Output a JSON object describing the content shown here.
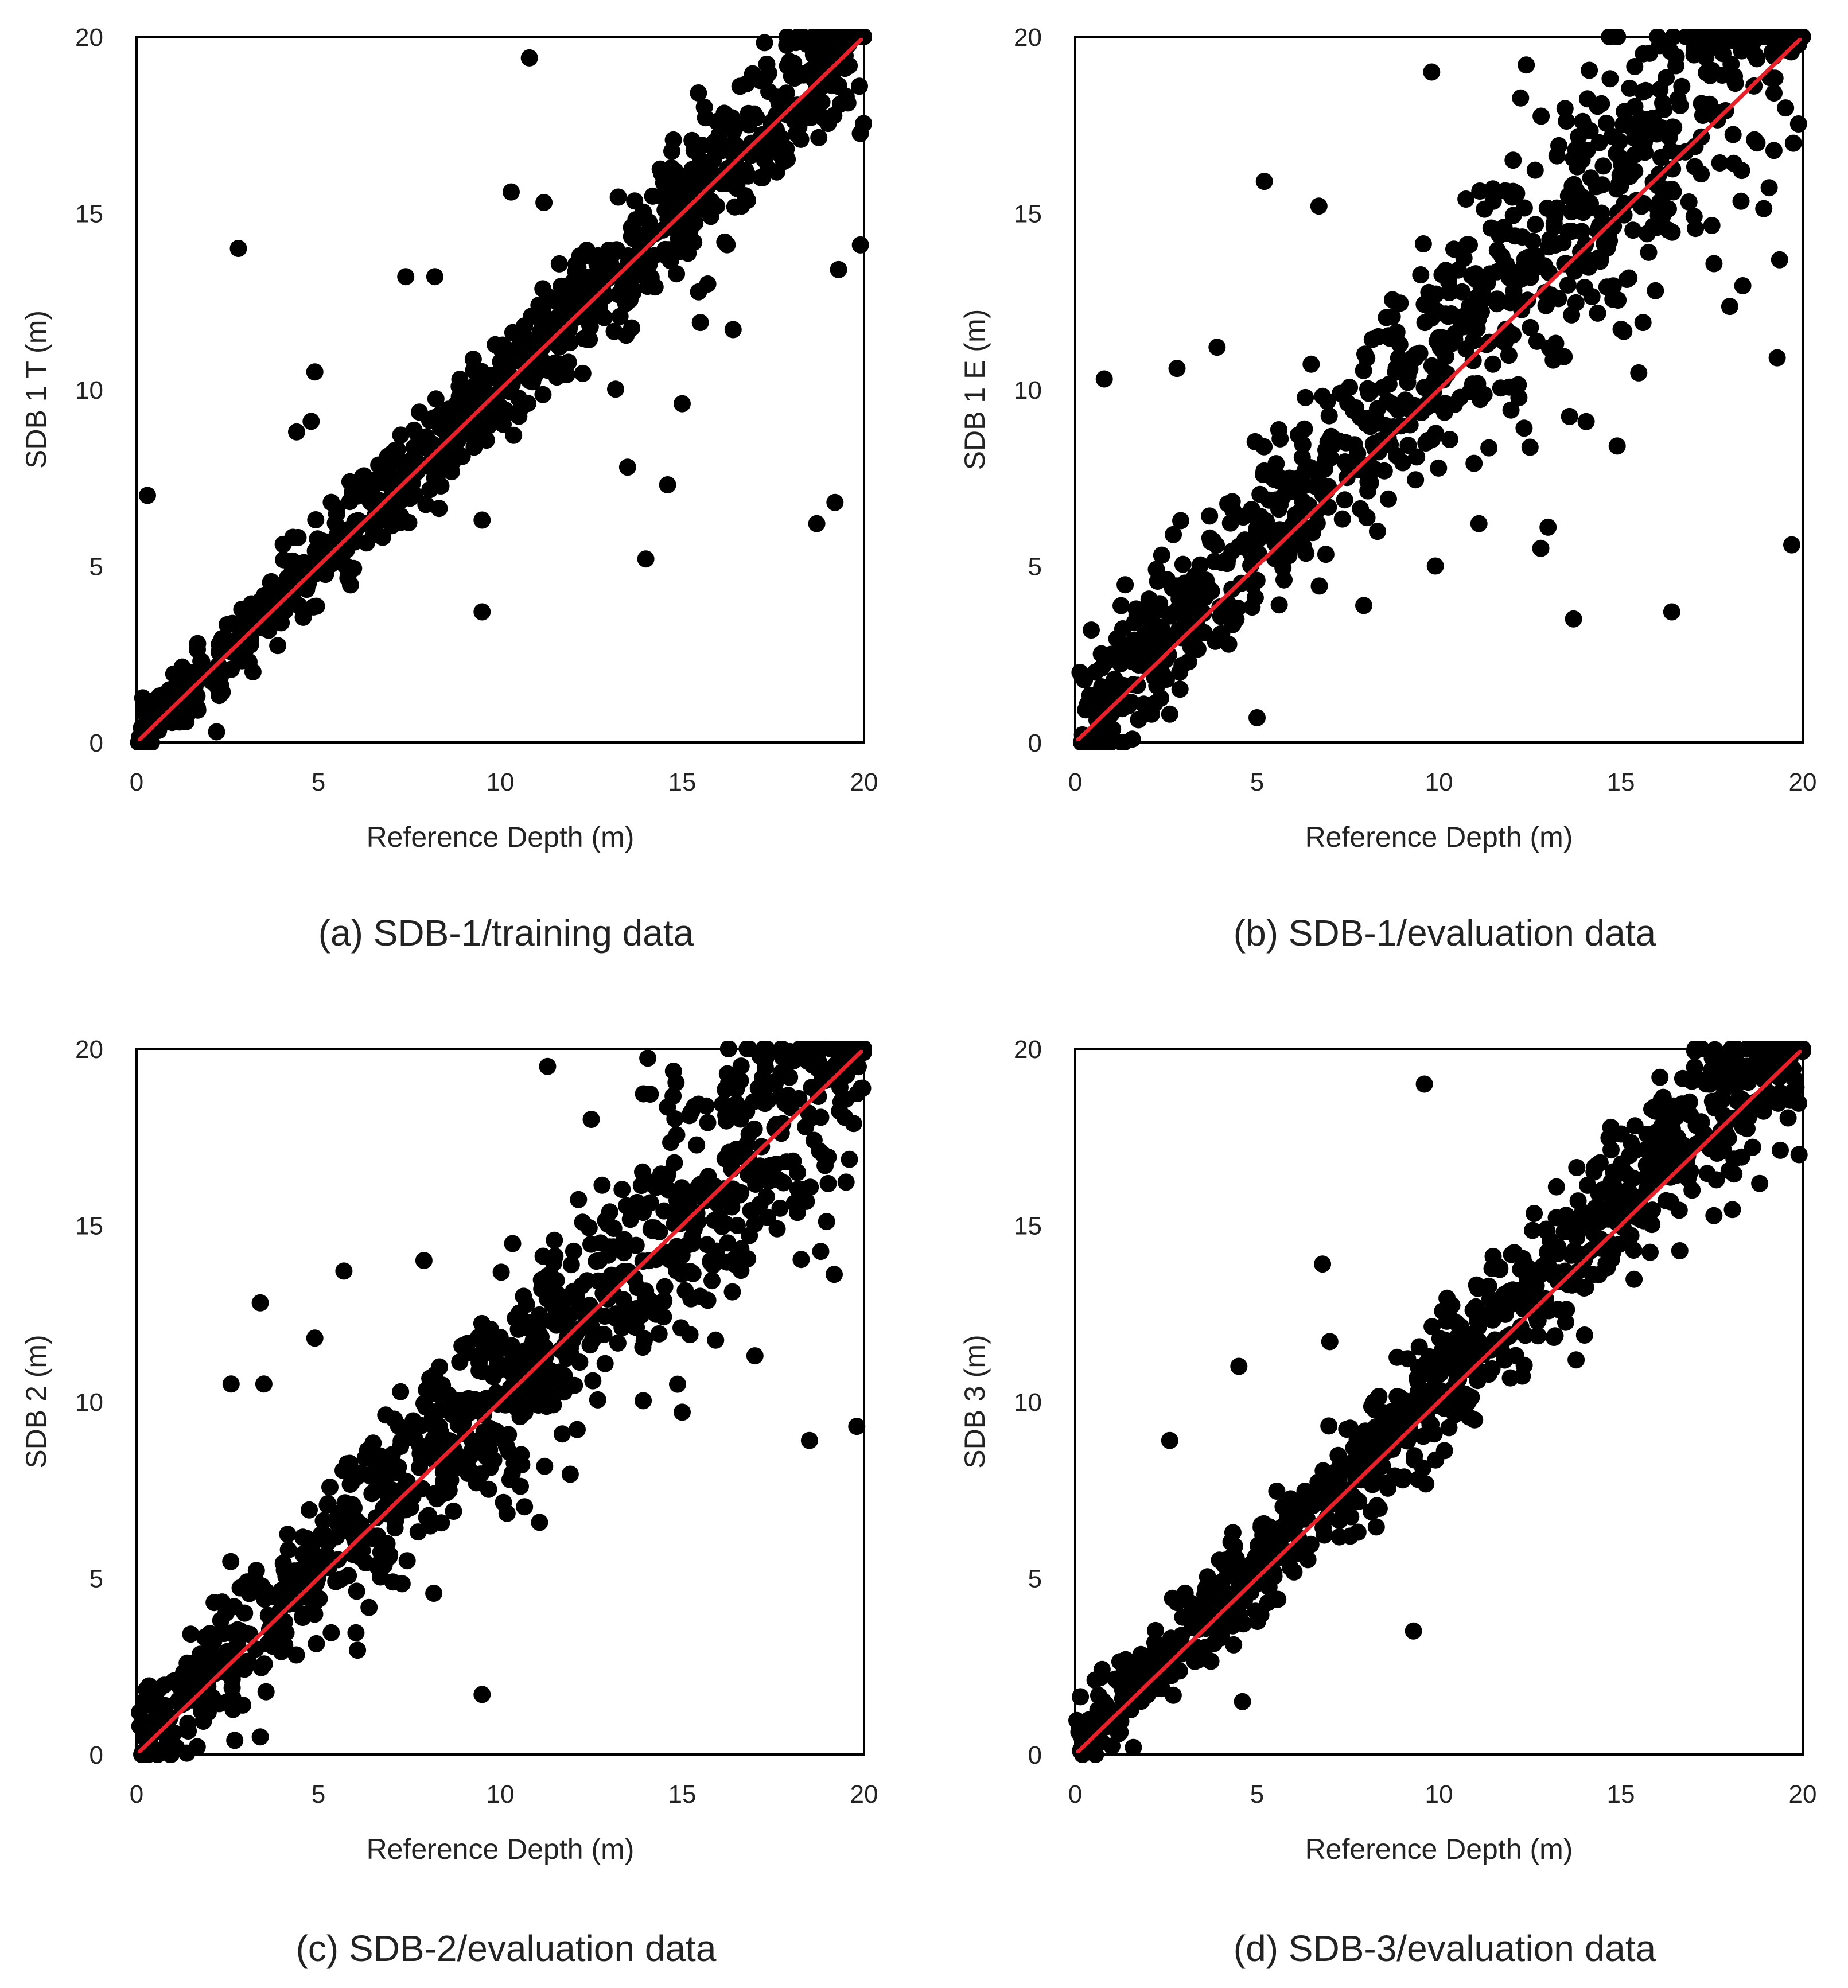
{
  "figure": {
    "type": "scatter-grid"
  },
  "chart_data": [
    {
      "type": "scatter",
      "id": "a",
      "caption": "(a) SDB-1/training data",
      "xlabel": "Reference Depth (m)",
      "ylabel": "SDB 1 T (m)",
      "xlim": [
        0,
        20
      ],
      "ylim": [
        0,
        20
      ],
      "xticks": [
        "0",
        "5",
        "10",
        "15",
        "20"
      ],
      "yticks": [
        "0",
        "5",
        "10",
        "15",
        "20"
      ],
      "reference_line": {
        "from": [
          0,
          0
        ],
        "to": [
          20,
          20
        ],
        "color": "#e8202a"
      },
      "marker_color": "#000000",
      "n_points": 900,
      "spread": 0.9,
      "bias": 0.2,
      "seed": 11,
      "outliers": [
        [
          0.3,
          7.0
        ],
        [
          2.8,
          14.0
        ],
        [
          10.8,
          19.4
        ],
        [
          9.5,
          3.7
        ],
        [
          14.0,
          5.2
        ],
        [
          14.6,
          7.3
        ],
        [
          13.5,
          7.8
        ],
        [
          15.0,
          9.6
        ],
        [
          15.5,
          11.9
        ],
        [
          16.4,
          11.7
        ],
        [
          18.7,
          6.2
        ],
        [
          19.2,
          6.8
        ],
        [
          19.9,
          14.1
        ],
        [
          19.3,
          13.4
        ],
        [
          2.2,
          0.3
        ],
        [
          3.2,
          2.0
        ],
        [
          4.4,
          8.8
        ],
        [
          4.8,
          9.1
        ],
        [
          4.9,
          10.5
        ],
        [
          7.4,
          13.2
        ],
        [
          8.2,
          13.2
        ],
        [
          9.5,
          6.3
        ],
        [
          10.3,
          15.6
        ],
        [
          11.2,
          15.3
        ]
      ]
    },
    {
      "type": "scatter",
      "id": "b",
      "caption": "(b) SDB-1/evaluation data",
      "xlabel": "Reference Depth (m)",
      "ylabel": "SDB 1 E (m)",
      "xlim": [
        0,
        20
      ],
      "ylim": [
        0,
        20
      ],
      "xticks": [
        "0",
        "5",
        "10",
        "15",
        "20"
      ],
      "yticks": [
        "0",
        "5",
        "10",
        "15",
        "20"
      ],
      "reference_line": {
        "from": [
          0,
          0
        ],
        "to": [
          20,
          20
        ],
        "color": "#e8202a"
      },
      "marker_color": "#000000",
      "n_points": 900,
      "spread": 1.9,
      "bias": 1.1,
      "seed": 23,
      "outliers": [
        [
          0.8,
          10.3
        ],
        [
          5.0,
          0.7
        ],
        [
          5.2,
          15.9
        ],
        [
          6.7,
          15.2
        ],
        [
          9.8,
          19.0
        ],
        [
          12.4,
          19.2
        ],
        [
          9.9,
          5.0
        ],
        [
          11.1,
          6.2
        ],
        [
          12.8,
          5.5
        ],
        [
          13.0,
          6.1
        ],
        [
          13.7,
          3.5
        ],
        [
          14.9,
          8.4
        ],
        [
          16.4,
          3.7
        ],
        [
          19.7,
          5.6
        ],
        [
          19.3,
          10.9
        ],
        [
          2.6,
          0.8
        ],
        [
          2.1,
          0.8
        ],
        [
          3.9,
          11.2
        ],
        [
          2.8,
          10.6
        ]
      ]
    },
    {
      "type": "scatter",
      "id": "c",
      "caption": "(c) SDB-2/evaluation data",
      "xlabel": "Reference Depth (m)",
      "ylabel": "SDB 2 (m)",
      "xlim": [
        0,
        20
      ],
      "ylim": [
        0,
        20
      ],
      "xticks": [
        "0",
        "5",
        "10",
        "15",
        "20"
      ],
      "yticks": [
        "0",
        "5",
        "10",
        "15",
        "20"
      ],
      "reference_line": {
        "from": [
          0,
          0
        ],
        "to": [
          20,
          20
        ],
        "color": "#e8202a"
      },
      "marker_color": "#000000",
      "n_points": 950,
      "spread": 1.7,
      "bias": 0.5,
      "seed": 37,
      "outliers": [
        [
          9.5,
          1.7
        ],
        [
          18.5,
          8.9
        ],
        [
          19.8,
          9.3
        ],
        [
          3.4,
          12.8
        ],
        [
          5.7,
          13.7
        ],
        [
          7.9,
          14.0
        ],
        [
          11.3,
          19.5
        ],
        [
          12.5,
          18.0
        ],
        [
          3.4,
          0.5
        ],
        [
          2.7,
          0.4
        ],
        [
          3.5,
          10.5
        ],
        [
          2.6,
          10.5
        ],
        [
          17.0,
          11.3
        ],
        [
          15.0,
          9.7
        ],
        [
          4.9,
          11.8
        ]
      ]
    },
    {
      "type": "scatter",
      "id": "d",
      "caption": "(d) SDB-3/evaluation data",
      "xlabel": "Reference Depth (m)",
      "ylabel": "SDB 3 (m)",
      "xlim": [
        0,
        20
      ],
      "ylim": [
        0,
        20
      ],
      "xticks": [
        "0",
        "5",
        "10",
        "15",
        "20"
      ],
      "yticks": [
        "0",
        "5",
        "10",
        "15",
        "20"
      ],
      "reference_line": {
        "from": [
          0,
          0
        ],
        "to": [
          20,
          20
        ],
        "color": "#e8202a"
      },
      "marker_color": "#000000",
      "n_points": 900,
      "spread": 1.1,
      "bias": 0.7,
      "seed": 53,
      "outliers": [
        [
          9.6,
          19.0
        ],
        [
          6.8,
          13.9
        ],
        [
          9.3,
          3.5
        ],
        [
          4.6,
          1.5
        ],
        [
          1.6,
          0.2
        ],
        [
          4.5,
          11.0
        ],
        [
          19.9,
          17.0
        ],
        [
          2.6,
          8.9
        ],
        [
          7.0,
          11.7
        ]
      ]
    }
  ]
}
